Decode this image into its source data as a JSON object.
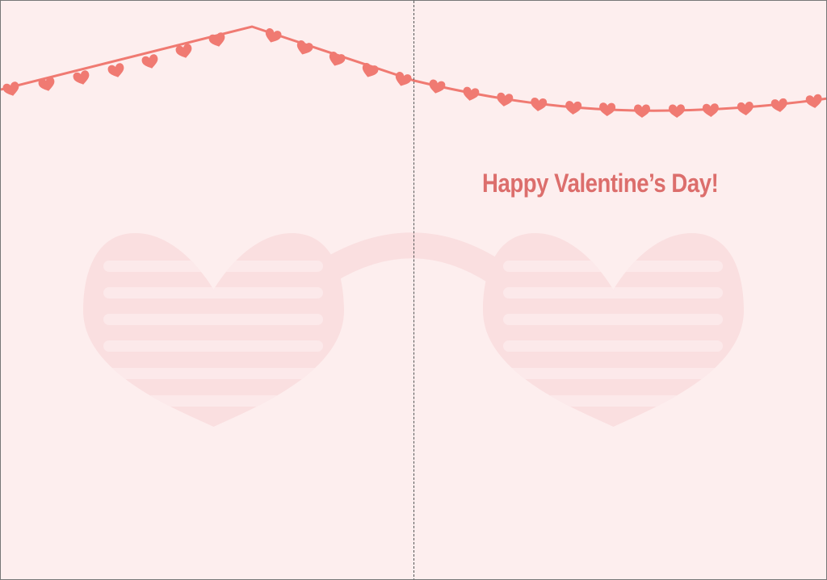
{
  "card": {
    "greeting": "Happy Valentine’s Day!",
    "colors": {
      "background": "#fdeeee",
      "garland": "#f07a72",
      "greeting_text": "#dc6e6c",
      "glasses": "#fadfe0",
      "glasses_stripes": "#fce9ea",
      "fold_line": "#555555",
      "border": "#777777"
    },
    "decorations": [
      "heart-garland",
      "heart-sunglasses"
    ]
  }
}
